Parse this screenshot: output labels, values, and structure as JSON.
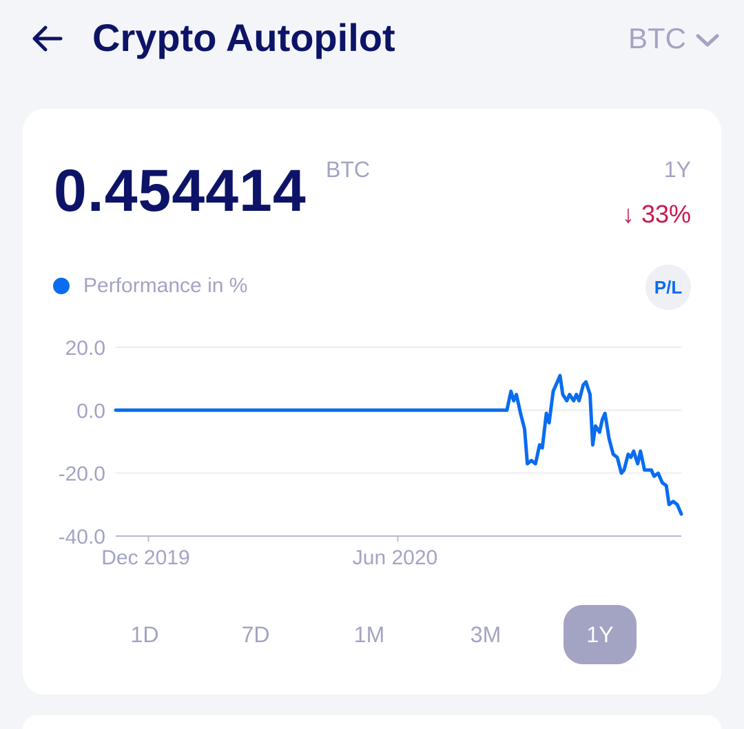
{
  "header": {
    "title": "Crypto Autopilot",
    "asset_selected": "BTC",
    "back_icon": "arrow-left-icon",
    "dropdown_icon": "chevron-down-icon"
  },
  "summary": {
    "balance": "0.454414",
    "unit": "BTC",
    "period": "1Y",
    "change_text": "↓ 33%",
    "change_color": "#c8174e"
  },
  "legend": {
    "label": "Performance in %",
    "color": "#0a6cf0",
    "pl_label": "P/L"
  },
  "chart_data": {
    "type": "line",
    "y_ticks": [
      "20.0",
      "0.0",
      "-20.0",
      "-40.0"
    ],
    "x_ticks": [
      "Dec 2019",
      "Jun 2020"
    ],
    "ylim": [
      -40,
      20
    ],
    "grid": true,
    "series": [
      {
        "color": "#0a6cf0",
        "points": [
          [
            "2019-11-07",
            0
          ],
          [
            "2020-08-20",
            0
          ],
          [
            "2020-08-23",
            6
          ],
          [
            "2020-08-25",
            3
          ],
          [
            "2020-08-27",
            5
          ],
          [
            "2020-08-30",
            -1
          ],
          [
            "2020-09-02",
            -6
          ],
          [
            "2020-09-04",
            -17
          ],
          [
            "2020-09-07",
            -16
          ],
          [
            "2020-09-10",
            -17
          ],
          [
            "2020-09-13",
            -11
          ],
          [
            "2020-09-15",
            -12
          ],
          [
            "2020-09-18",
            -1
          ],
          [
            "2020-09-20",
            -4
          ],
          [
            "2020-09-23",
            6
          ],
          [
            "2020-09-26",
            9
          ],
          [
            "2020-09-28",
            11
          ],
          [
            "2020-09-30",
            5
          ],
          [
            "2020-10-03",
            3
          ],
          [
            "2020-10-05",
            5
          ],
          [
            "2020-10-08",
            3
          ],
          [
            "2020-10-10",
            5
          ],
          [
            "2020-10-12",
            3
          ],
          [
            "2020-10-15",
            8
          ],
          [
            "2020-10-17",
            9
          ],
          [
            "2020-10-20",
            5
          ],
          [
            "2020-10-22",
            -11
          ],
          [
            "2020-10-24",
            -5
          ],
          [
            "2020-10-27",
            -7
          ],
          [
            "2020-10-29",
            -3
          ],
          [
            "2020-10-31",
            -1
          ],
          [
            "2020-11-03",
            -9
          ],
          [
            "2020-11-06",
            -14
          ],
          [
            "2020-11-09",
            -15
          ],
          [
            "2020-11-12",
            -20
          ],
          [
            "2020-11-14",
            -19
          ],
          [
            "2020-11-17",
            -14
          ],
          [
            "2020-11-19",
            -15
          ],
          [
            "2020-11-21",
            -13
          ],
          [
            "2020-11-24",
            -17
          ],
          [
            "2020-11-26",
            -13
          ],
          [
            "2020-11-29",
            -19
          ],
          [
            "2020-12-01",
            -19
          ],
          [
            "2020-12-04",
            -19
          ],
          [
            "2020-12-06",
            -21
          ],
          [
            "2020-12-09",
            -20
          ],
          [
            "2020-12-12",
            -23
          ],
          [
            "2020-12-15",
            -24
          ],
          [
            "2020-12-17",
            -30
          ],
          [
            "2020-12-20",
            -29
          ],
          [
            "2020-12-23",
            -30
          ],
          [
            "2020-12-26",
            -33
          ]
        ]
      }
    ]
  },
  "ranges": {
    "items": [
      "1D",
      "7D",
      "1M",
      "3M",
      "1Y"
    ],
    "active": "1Y"
  }
}
